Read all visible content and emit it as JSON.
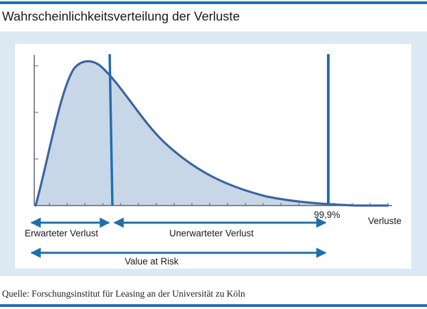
{
  "title": "Wahrscheinlichkeitsverteilung der Verluste",
  "source": "Quelle: Forschungsinstitut für Leasing an der Universität zu Köln",
  "colors": {
    "accent": "#1f6fad",
    "panel": "#dce9f5",
    "curve": "#3c64a0",
    "fill": "#c7d7e8",
    "marker": "#1f6fad"
  },
  "diagram": {
    "percentile_label": "99,9%",
    "x_axis_label": "Verluste",
    "expected_loss_label": "Erwarteter Verlust",
    "unexpected_loss_label": "Unerwarteter Verlust",
    "var_label": "Value at Risk"
  }
}
